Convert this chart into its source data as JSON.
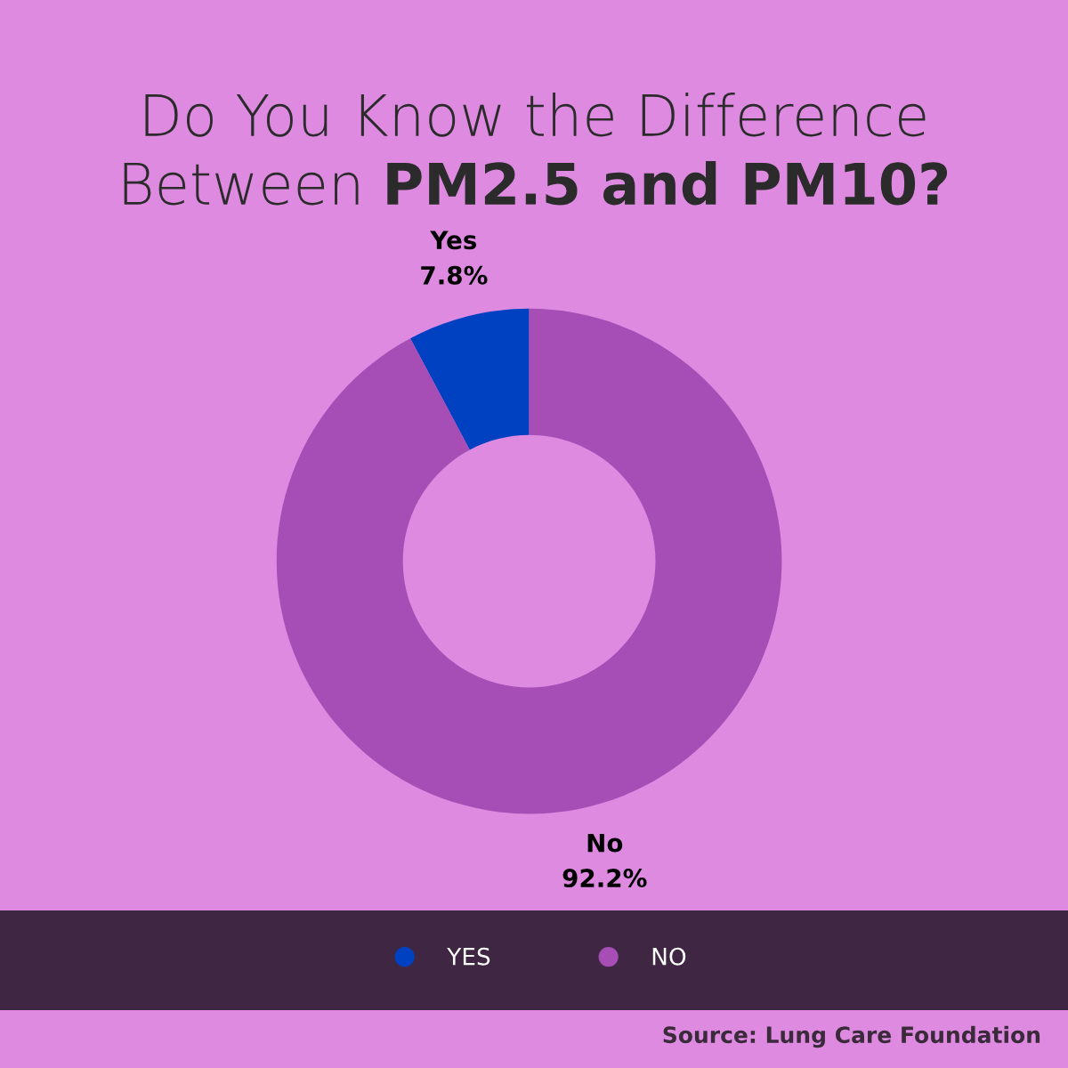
{
  "chart_data": {
    "type": "donut",
    "title": "Do You Know the Difference Between",
    "subtitle": "PM2.5 and PM10?",
    "categories": [
      "YES",
      "NO"
    ],
    "values": [
      7.8,
      92.2
    ],
    "colors": [
      "#0041c2",
      "#a64db6"
    ],
    "value_labels": [
      "Yes\n7.8%",
      "No\n92.2%"
    ],
    "legend": "bottom",
    "annotations": [
      "Source: Lung Care Foundation"
    ]
  }
}
